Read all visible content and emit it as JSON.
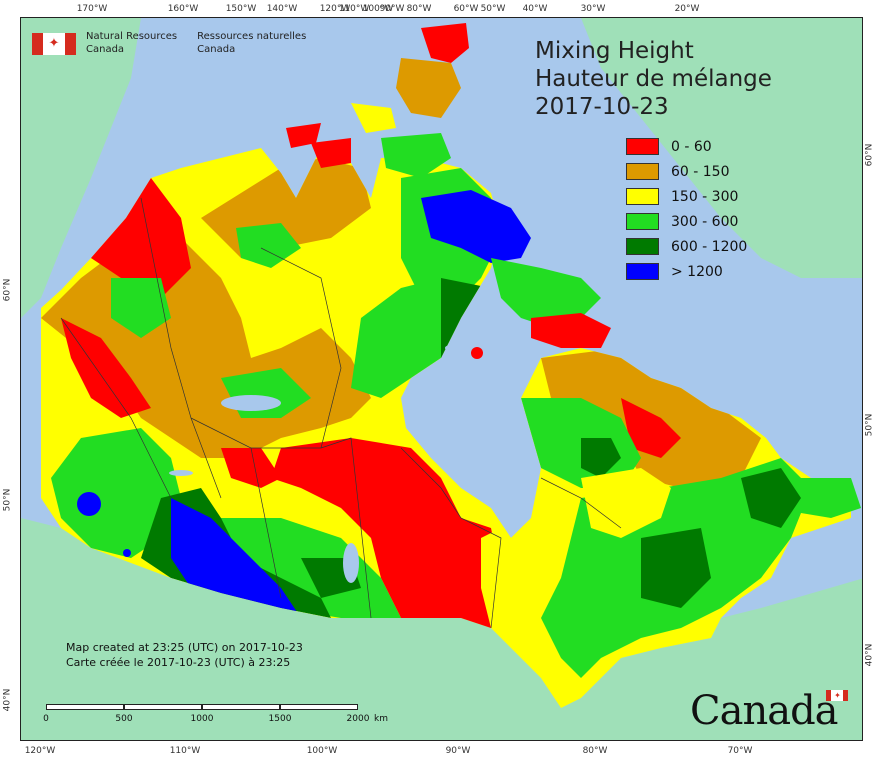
{
  "agency": {
    "name_en_line1": "Natural Resources",
    "name_en_line2": "Canada",
    "name_fr_line1": "Ressources naturelles",
    "name_fr_line2": "Canada",
    "flag_icon": "canada-flag-icon"
  },
  "title": {
    "line1": "Mixing Height",
    "line2": "Hauteur de mélange",
    "date": "2017-10-23"
  },
  "legend": [
    {
      "label": "0 - 60",
      "color": "#ff0000"
    },
    {
      "label": "60 - 150",
      "color": "#dd9a00"
    },
    {
      "label": "150 - 300",
      "color": "#ffff00"
    },
    {
      "label": "300 - 600",
      "color": "#22dd22"
    },
    {
      "label": "600 - 1200",
      "color": "#007a00"
    },
    {
      "label": "> 1200",
      "color": "#0000ff"
    }
  ],
  "colors": {
    "water": "#a8c8ec",
    "foreign_land": "#9fe0b8",
    "boundary": "#333333"
  },
  "ticks": {
    "top": [
      "170°W",
      "160°W",
      "150°W",
      "140°W",
      "120°W",
      "110°W",
      "100°W",
      "90°W",
      "80°W",
      "60°W",
      "50°W",
      "40°W",
      "30°W",
      "20°W"
    ],
    "bottom": [
      "120°W",
      "110°W",
      "100°W",
      "90°W",
      "80°W",
      "70°W"
    ],
    "left": [
      "60°N",
      "50°N",
      "40°N"
    ],
    "right": [
      "60°N",
      "50°N",
      "40°N"
    ]
  },
  "created": {
    "en": "Map created at 23:25 (UTC) on 2017-10-23",
    "fr": "Carte créée le 2017-10-23 (UTC) à 23:25"
  },
  "scale": {
    "labels": [
      "0",
      "500",
      "1000",
      "1500",
      "2000"
    ],
    "unit": "km"
  },
  "wordmark": "Canada"
}
